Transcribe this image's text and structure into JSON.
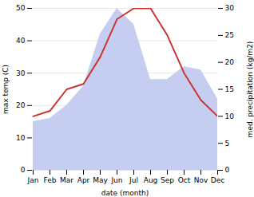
{
  "chart_data": {
    "type": "line",
    "xlabel": "date (month)",
    "ylabel": "max temp (C)",
    "y2label": "med. precipitation (kg/m2)",
    "categories": [
      "Jan",
      "Feb",
      "Mar",
      "Apr",
      "May",
      "Jun",
      "Jul",
      "Aug",
      "Sep",
      "Oct",
      "Nov",
      "Dec"
    ],
    "series": [
      {
        "type": "area",
        "color": "#c5cdf0",
        "values": [
          15,
          16,
          20,
          26,
          42,
          50,
          45,
          28,
          28,
          32,
          31,
          22
        ]
      },
      {
        "type": "line",
        "color": "#cc3333",
        "axis": "y2",
        "values": [
          10,
          11,
          15,
          16,
          21,
          28,
          30,
          30,
          25,
          18,
          13,
          10
        ]
      }
    ],
    "ylim": [
      0,
      50
    ],
    "yticks": [
      0,
      10,
      20,
      30,
      40,
      50
    ],
    "y2lim": [
      0,
      30
    ],
    "y2ticks": [
      0,
      5,
      10,
      15,
      20,
      25,
      30
    ],
    "grid": true
  }
}
